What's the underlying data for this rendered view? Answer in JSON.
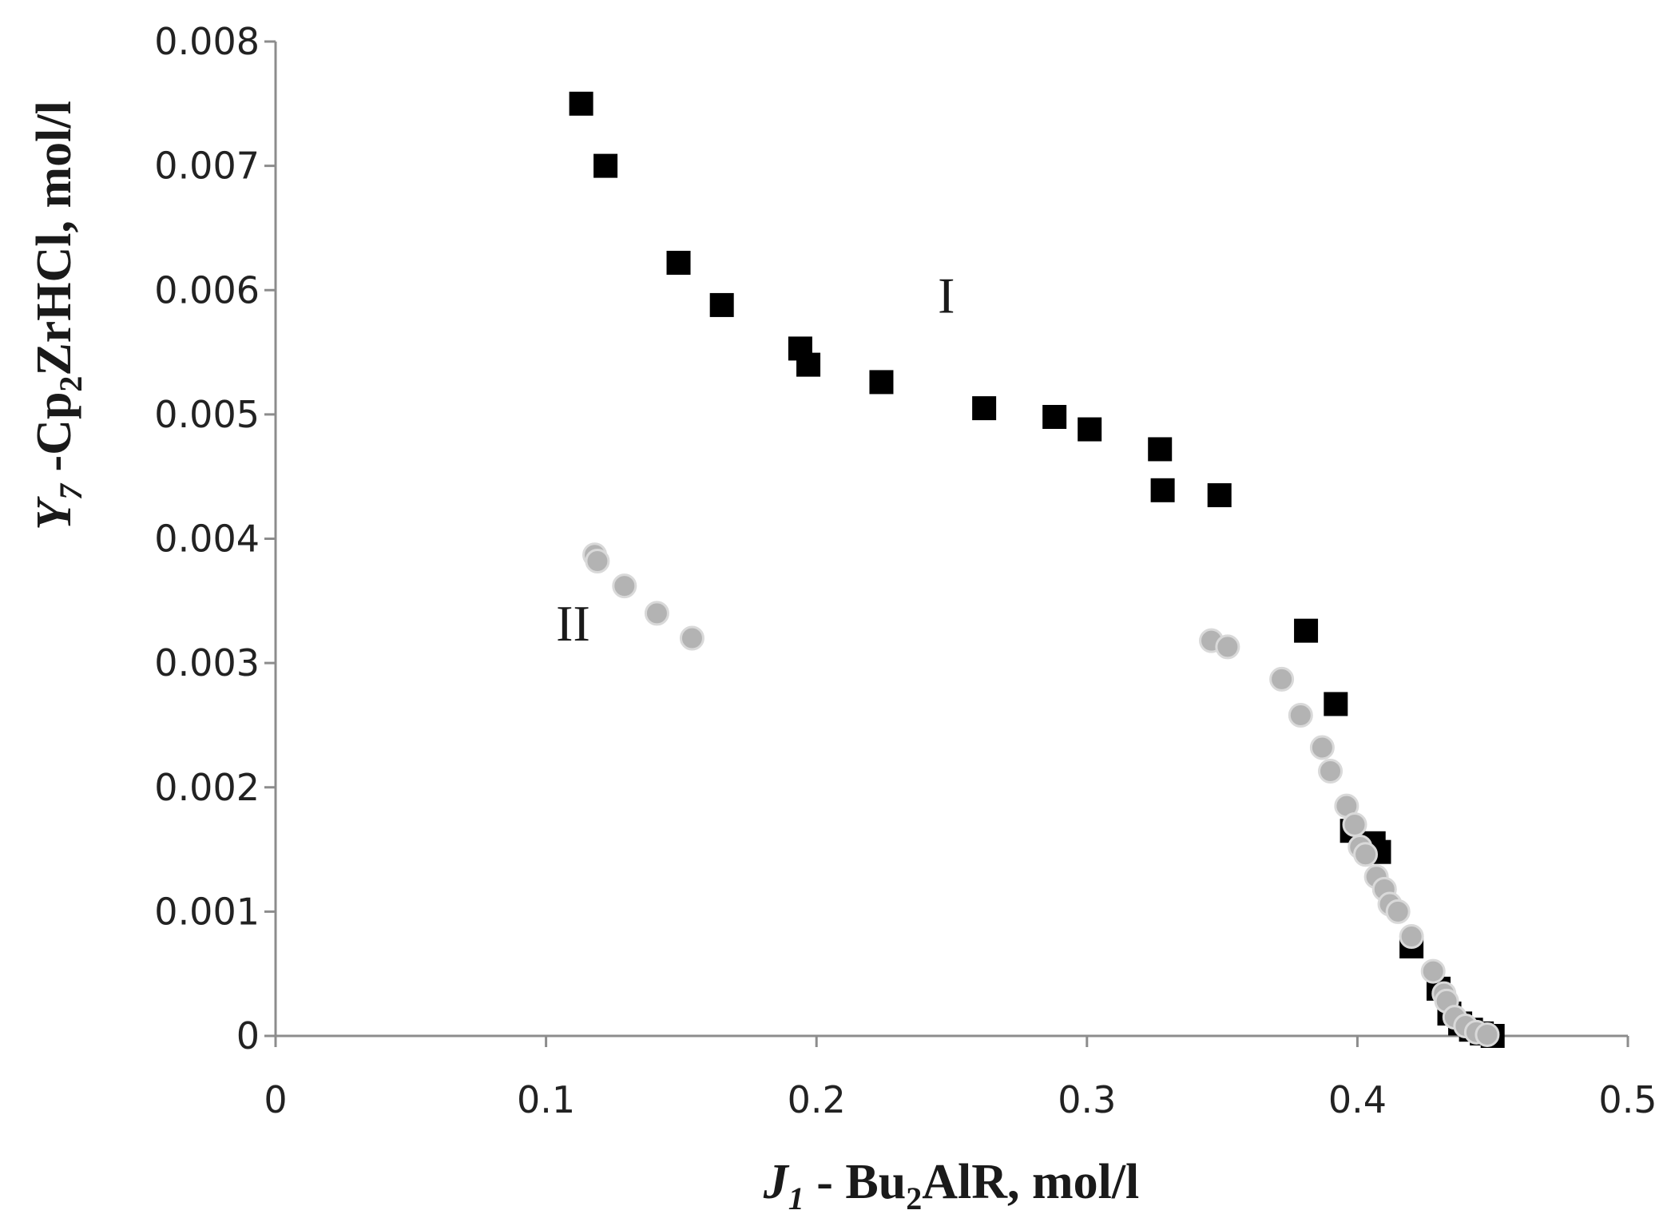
{
  "chart_data": {
    "type": "scatter",
    "title": "",
    "xlabel": {
      "italic": "J",
      "italic_sub": "1",
      "prefix": " - Bu",
      "sub": "2",
      "suffix": "AlR, mol/l"
    },
    "ylabel": {
      "italic": "Y",
      "italic_sub": "7",
      "prefix": " -Cp",
      "sub": "2",
      "suffix": "ZrHCl, mol/l"
    },
    "xlim": [
      0,
      0.5
    ],
    "ylim": [
      0,
      0.008
    ],
    "x_ticks": [
      "0",
      "0.1",
      "0.2",
      "0.3",
      "0.4",
      "0.5"
    ],
    "y_ticks": [
      "0",
      "0.001",
      "0.002",
      "0.003",
      "0.004",
      "0.005",
      "0.006",
      "0.007",
      "0.008"
    ],
    "grid": false,
    "legend": "none",
    "annotations": [
      {
        "text": "I",
        "x": 0.248,
        "y": 0.00582
      },
      {
        "text": "II",
        "x": 0.11,
        "y": 0.00318
      }
    ],
    "series": [
      {
        "name": "I",
        "marker": "square",
        "color": "#000000",
        "points": [
          [
            0.113,
            0.0075
          ],
          [
            0.122,
            0.007
          ],
          [
            0.149,
            0.00622
          ],
          [
            0.165,
            0.00588
          ],
          [
            0.194,
            0.00553
          ],
          [
            0.197,
            0.0054
          ],
          [
            0.224,
            0.00526
          ],
          [
            0.262,
            0.00505
          ],
          [
            0.288,
            0.00498
          ],
          [
            0.301,
            0.00488
          ],
          [
            0.327,
            0.00472
          ],
          [
            0.328,
            0.00439
          ],
          [
            0.349,
            0.00435
          ],
          [
            0.381,
            0.00326
          ],
          [
            0.392,
            0.00267
          ],
          [
            0.398,
            0.00165
          ],
          [
            0.406,
            0.00155
          ],
          [
            0.408,
            0.00148
          ],
          [
            0.42,
            0.00072
          ],
          [
            0.43,
            0.00038
          ],
          [
            0.434,
            0.00018
          ],
          [
            0.438,
            0.0001
          ],
          [
            0.442,
            5e-05
          ],
          [
            0.446,
            2e-05
          ],
          [
            0.45,
            0.0
          ]
        ]
      },
      {
        "name": "II",
        "marker": "circle",
        "color": "#b3b3b3",
        "points": [
          [
            0.118,
            0.00387
          ],
          [
            0.119,
            0.00382
          ],
          [
            0.129,
            0.00362
          ],
          [
            0.141,
            0.0034
          ],
          [
            0.154,
            0.0032
          ],
          [
            0.346,
            0.00318
          ],
          [
            0.352,
            0.00313
          ],
          [
            0.372,
            0.00287
          ],
          [
            0.379,
            0.00258
          ],
          [
            0.387,
            0.00232
          ],
          [
            0.39,
            0.00213
          ],
          [
            0.396,
            0.00185
          ],
          [
            0.399,
            0.0017
          ],
          [
            0.401,
            0.00152
          ],
          [
            0.403,
            0.00146
          ],
          [
            0.407,
            0.00128
          ],
          [
            0.41,
            0.00118
          ],
          [
            0.412,
            0.00106
          ],
          [
            0.415,
            0.001
          ],
          [
            0.42,
            0.0008
          ],
          [
            0.428,
            0.00052
          ],
          [
            0.432,
            0.00034
          ],
          [
            0.433,
            0.00028
          ],
          [
            0.436,
            0.00015
          ],
          [
            0.44,
            8e-05
          ],
          [
            0.444,
            3e-05
          ],
          [
            0.448,
            1e-05
          ]
        ]
      }
    ]
  }
}
